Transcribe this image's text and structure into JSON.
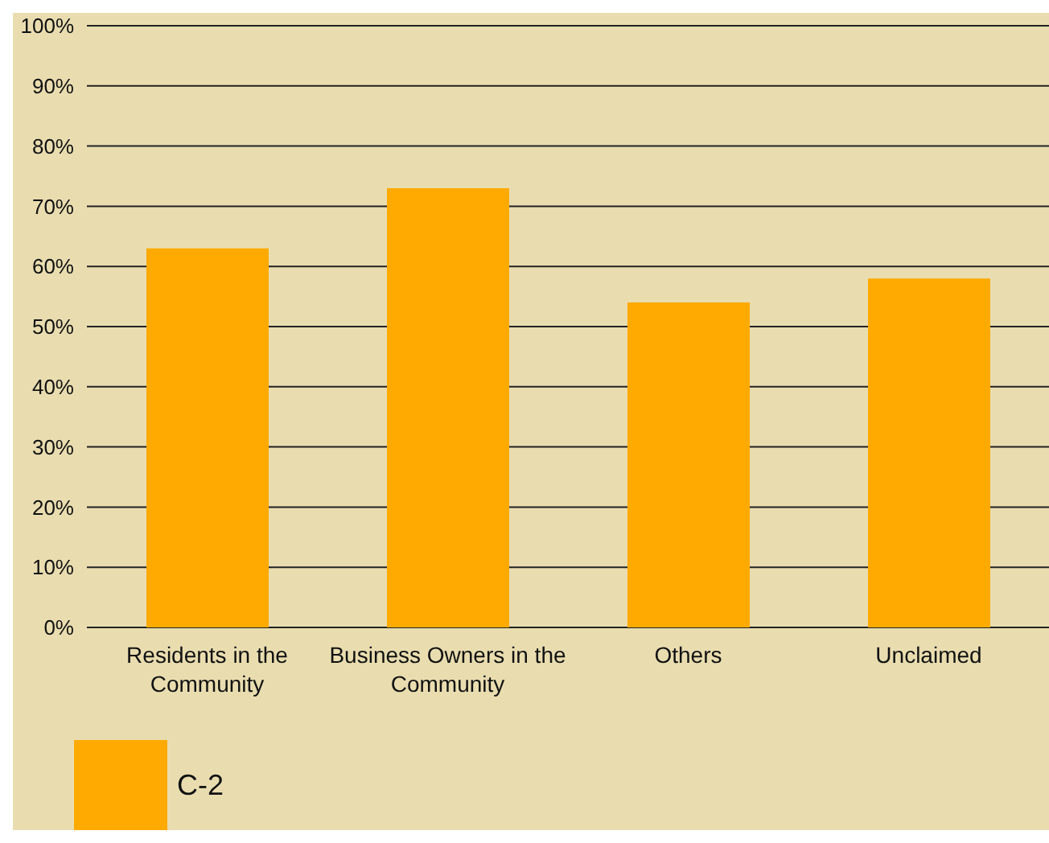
{
  "chart_data": {
    "type": "bar",
    "categories": [
      "Residents in the Community",
      "Business Owners in the Community",
      "Others",
      "Unclaimed"
    ],
    "series": [
      {
        "name": "C-2",
        "color": "#ffaa00",
        "values": [
          63,
          73,
          54,
          58
        ]
      }
    ],
    "ylim": [
      0,
      100
    ],
    "yticks": [
      {
        "value": 0,
        "label": "0%"
      },
      {
        "value": 10,
        "label": "10%"
      },
      {
        "value": 20,
        "label": "20%"
      },
      {
        "value": 30,
        "label": "30%"
      },
      {
        "value": 40,
        "label": "40%"
      },
      {
        "value": 50,
        "label": "50%"
      },
      {
        "value": 60,
        "label": "60%"
      },
      {
        "value": 70,
        "label": "70%"
      },
      {
        "value": 80,
        "label": "80%"
      },
      {
        "value": 90,
        "label": "90%"
      },
      {
        "value": 100,
        "label": "100%"
      }
    ],
    "grid": "y",
    "legend": "bottom left"
  }
}
